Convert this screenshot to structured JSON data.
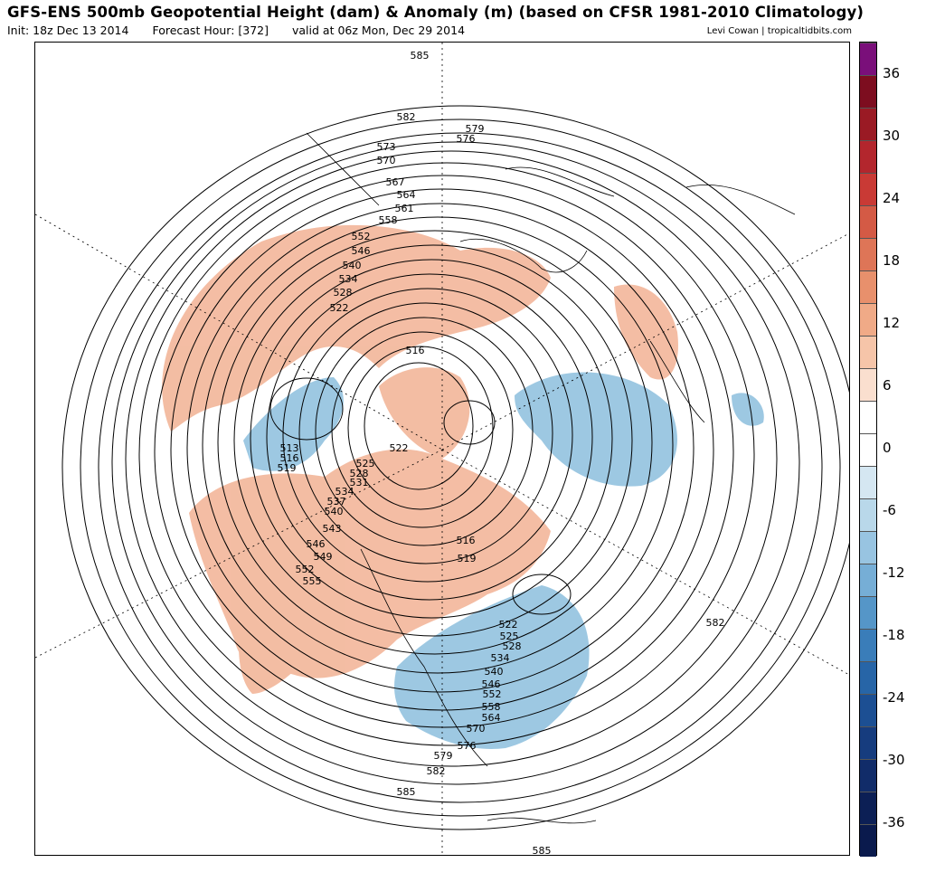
{
  "header": {
    "title": "GFS-ENS 500mb Geopotential Height (dam) & Anomaly (m) (based on CFSR 1981-2010 Climatology)",
    "init": "Init: 18z Dec 13 2014",
    "forecast_hour": "Forecast Hour: [372]",
    "valid": "valid at 06z Mon, Dec 29 2014",
    "credit": "Levi Cowan | tropicaltidbits.com"
  },
  "colorbar": {
    "labels": [
      "36",
      "30",
      "24",
      "18",
      "12",
      "6",
      "0",
      "-6",
      "-12",
      "-18",
      "-24",
      "-30",
      "-36"
    ],
    "colors": [
      "#7a0f7a",
      "#7d0d1f",
      "#9a1a24",
      "#b3262d",
      "#c93a35",
      "#d45a45",
      "#de7557",
      "#e8906c",
      "#f0aa87",
      "#f6c5a9",
      "#fadfcf",
      "#ffffff",
      "#ffffff",
      "#d5e7f2",
      "#b9d8ea",
      "#98c4e1",
      "#76aed6",
      "#5596c8",
      "#3a7db9",
      "#2765a7",
      "#1c4f93",
      "#163c7e",
      "#112c69",
      "#0c1f55",
      "#0a1a4d"
    ]
  },
  "map": {
    "contour_labels": [
      "585",
      "582",
      "579",
      "576",
      "573",
      "570",
      "567",
      "564",
      "561",
      "558",
      "552",
      "546",
      "540",
      "534",
      "528",
      "522",
      "516",
      "522",
      "513",
      "516",
      "519",
      "525",
      "528",
      "531",
      "534",
      "537",
      "540",
      "543",
      "546",
      "549",
      "552",
      "555",
      "516",
      "519",
      "522",
      "525",
      "528",
      "534",
      "540",
      "546",
      "552",
      "558",
      "564",
      "570",
      "576",
      "579",
      "582",
      "585",
      "582",
      "585"
    ],
    "warm_anomaly_color": "#f2b294",
    "cold_anomaly_color": "#8cbedd"
  }
}
